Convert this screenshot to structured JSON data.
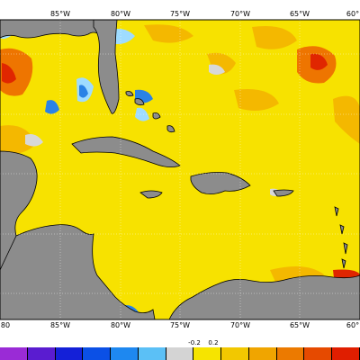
{
  "map": {
    "top_ticks": [
      "85°W",
      "80°W",
      "75°W",
      "70°W",
      "65°W",
      "60°"
    ],
    "bottom_ticks": [
      "80",
      "85°W",
      "80°W",
      "75°W",
      "70°W",
      "65°W",
      "60°"
    ],
    "colors": {
      "land": "#8c8c8c",
      "ocean_main": "#f7e200",
      "ocean_warm": "#f4b800",
      "ocean_hot": "#ee7500",
      "ocean_very_hot": "#e02600",
      "ocean_cool": "#9fdcff",
      "ocean_cold": "#2a82e6",
      "neutral": "#d8d8d8",
      "grid": "#ffffff"
    }
  },
  "colorbar": {
    "labels": [
      "-0.2",
      "0.2"
    ],
    "segments": [
      "#9a2bd6",
      "#5a1cd0",
      "#1420d8",
      "#0b50e6",
      "#1e88f0",
      "#5bc0f6",
      "#d4d4d4",
      "#f6e400",
      "#f2c800",
      "#f0a500",
      "#ec7a00",
      "#e64a00",
      "#e01e00"
    ]
  }
}
